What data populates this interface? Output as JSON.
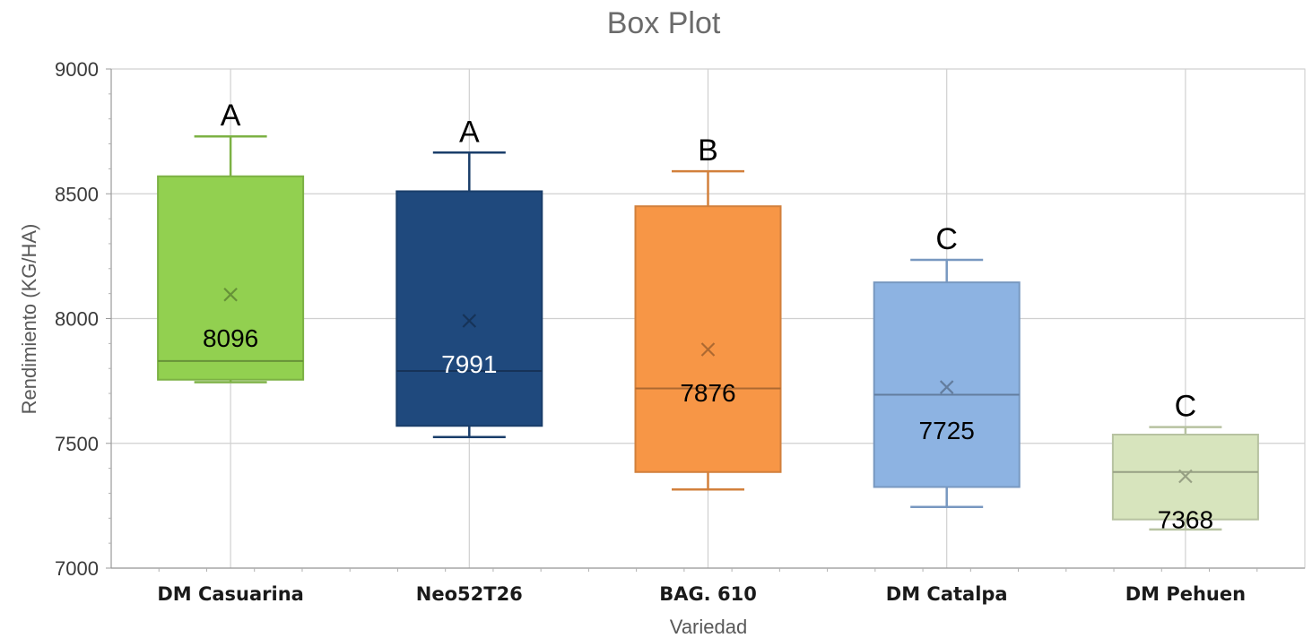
{
  "chart_data": {
    "type": "box",
    "title": "Box Plot",
    "xlabel": "Variedad",
    "ylabel": "Rendimiento (KG/HA)",
    "ylim": [
      7000,
      9000
    ],
    "yticks": [
      "7000",
      "7500",
      "8000",
      "8500",
      "9000"
    ],
    "grid": true,
    "categories": [
      "DM Casuarina",
      "Neo52T26",
      "BAG. 610",
      "DM Catalpa",
      "DM Pehuen"
    ],
    "boxes": [
      {
        "category": "DM Casuarina",
        "min": 7745,
        "q1": 7755,
        "median": 7830,
        "q3": 8570,
        "max": 8730,
        "mean": 8096,
        "mean_label": "8096",
        "group": "A",
        "color": "#92d050",
        "label_color": "#000000"
      },
      {
        "category": "Neo52T26",
        "min": 7525,
        "q1": 7570,
        "median": 7790,
        "q3": 8510,
        "max": 8665,
        "mean": 7991,
        "mean_label": "7991",
        "group": "A",
        "color": "#1f497d",
        "label_color": "#ffffff"
      },
      {
        "category": "BAG. 610",
        "min": 7315,
        "q1": 7385,
        "median": 7720,
        "q3": 8450,
        "max": 8590,
        "mean": 7876,
        "mean_label": "7876",
        "group": "B",
        "color": "#f79646",
        "label_color": "#000000"
      },
      {
        "category": "DM Catalpa",
        "min": 7245,
        "q1": 7325,
        "median": 7695,
        "q3": 8145,
        "max": 8235,
        "mean": 7725,
        "mean_label": "7725",
        "group": "C",
        "color": "#8db3e2",
        "label_color": "#000000"
      },
      {
        "category": "DM Pehuen",
        "min": 7155,
        "q1": 7195,
        "median": 7385,
        "q3": 7535,
        "max": 7565,
        "mean": 7368,
        "mean_label": "7368",
        "group": "C",
        "color": "#d7e4bd",
        "label_color": "#000000"
      }
    ]
  }
}
